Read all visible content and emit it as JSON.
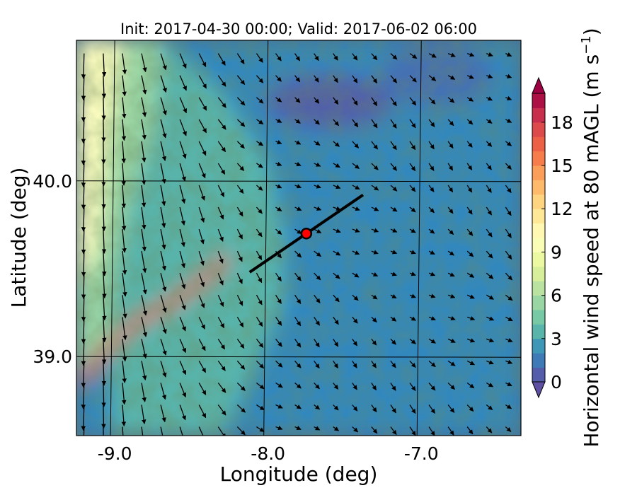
{
  "chart_data": {
    "type": "heatmap",
    "title": "Init: 2017-04-30 00:00; Valid: 2017-06-02 06:00",
    "xlabel": "Longitude (deg)",
    "ylabel": "Latitude (deg)",
    "xlim": [
      -9.25,
      -6.35
    ],
    "ylim": [
      38.55,
      40.8
    ],
    "x_ticks": [
      -9.0,
      -8.0,
      -7.0
    ],
    "x_tick_labels": [
      "-9.0",
      "-8.0",
      "-7.0"
    ],
    "y_ticks": [
      39.0,
      40.0
    ],
    "y_tick_labels": [
      "39.0",
      "40.0"
    ],
    "grid": true,
    "colorbar": {
      "label_main": "Horizontal wind speed at 80 mAGL (m s",
      "label_sup": "−1",
      "label_close": ")",
      "min": 0,
      "max": 20,
      "ticks": [
        0,
        3,
        6,
        9,
        12,
        15,
        18
      ],
      "tick_labels": [
        "0",
        "3",
        "6",
        "9",
        "12",
        "15",
        "18"
      ],
      "extend": "both",
      "colormap": "Spectral_r"
    },
    "transect": {
      "start": [
        -8.12,
        39.48
      ],
      "end": [
        -7.38,
        39.92
      ]
    },
    "marker": {
      "lon": -7.75,
      "lat": 39.7,
      "color": "#ff0000"
    },
    "high_wind_band": {
      "points": [
        [
          -9.2,
          38.88
        ],
        [
          -9.05,
          39.05
        ],
        [
          -8.85,
          39.2
        ],
        [
          -8.6,
          39.32
        ],
        [
          -8.4,
          39.45
        ],
        [
          -8.28,
          39.55
        ]
      ],
      "approx_speed": 17
    },
    "coastal_speed_approx": 10,
    "interior_speed_approx": 2
  }
}
